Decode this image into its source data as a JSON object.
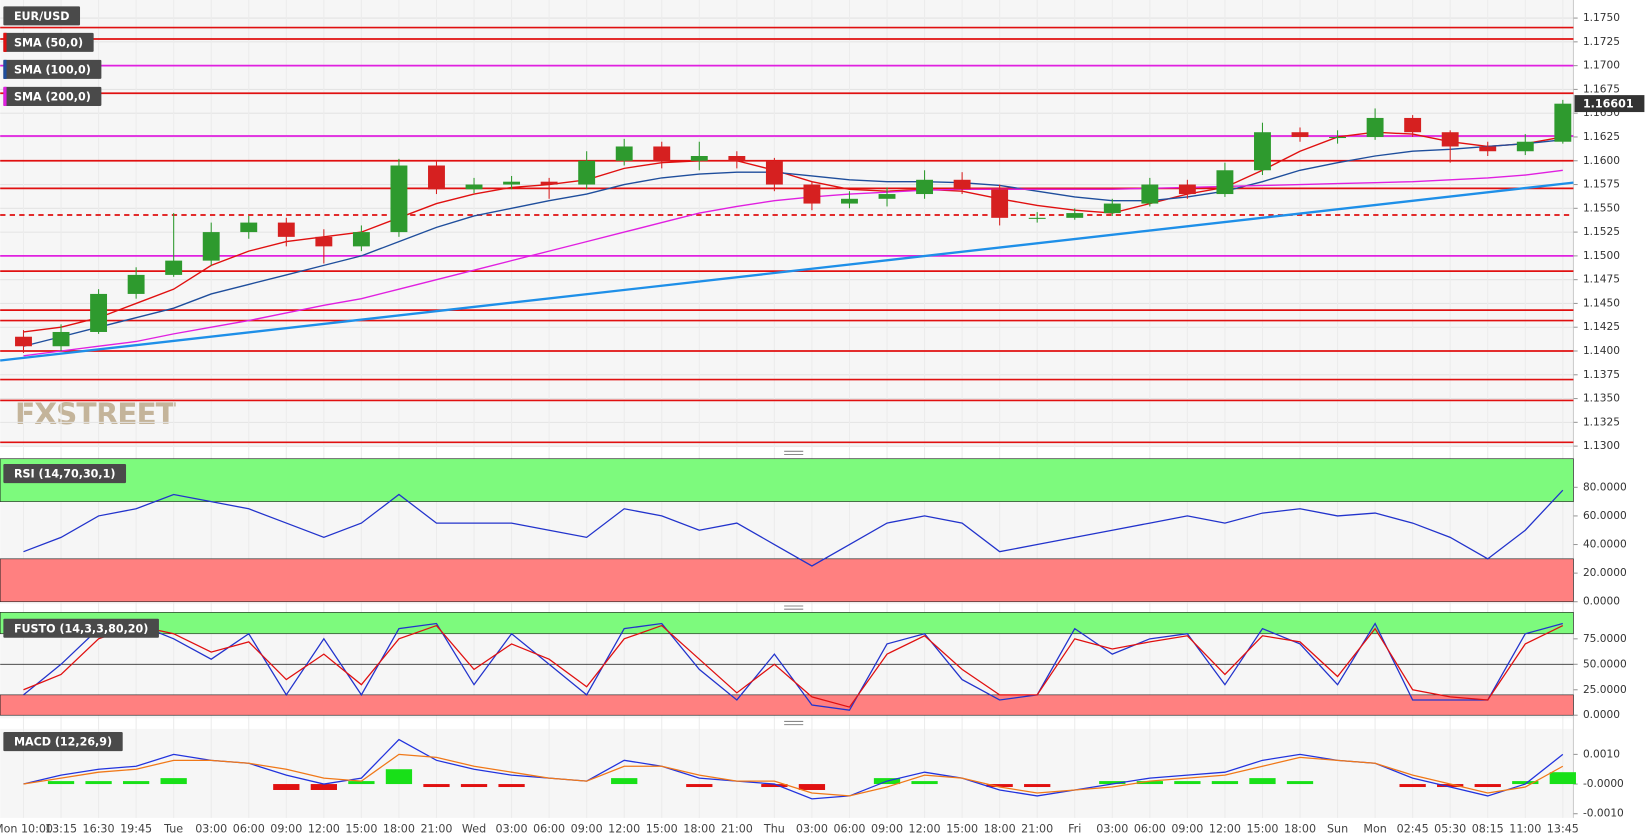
{
  "chart_data": [
    {
      "type": "candlestick",
      "symbol": "EUR/USD",
      "watermark": "FXSTREET",
      "categories": [
        "Mon 10:00",
        "13:15",
        "16:30",
        "19:45",
        "Tue",
        "03:00",
        "06:00",
        "09:00",
        "12:00",
        "15:00",
        "18:00",
        "21:00",
        "Wed",
        "03:00",
        "06:00",
        "09:00",
        "12:00",
        "15:00",
        "18:00",
        "21:00",
        "Thu",
        "03:00",
        "06:00",
        "09:00",
        "12:00",
        "15:00",
        "18:00",
        "21:00",
        "Fri",
        "03:00",
        "06:00",
        "09:00",
        "12:00",
        "15:00",
        "18:00",
        "Sun",
        "Mon",
        "02:45",
        "05:30",
        "08:15",
        "11:00",
        "13:45"
      ],
      "open": [
        1.1415,
        1.1405,
        1.142,
        1.146,
        1.148,
        1.1495,
        1.1525,
        1.1535,
        1.152,
        1.151,
        1.1525,
        1.1595,
        1.157,
        1.1575,
        1.1578,
        1.1575,
        1.16,
        1.1615,
        1.16,
        1.1605,
        1.16,
        1.1575,
        1.1555,
        1.156,
        1.1565,
        1.158,
        1.157,
        1.154,
        1.154,
        1.1545,
        1.1555,
        1.1575,
        1.1565,
        1.159,
        1.163,
        1.1625,
        1.1625,
        1.1645,
        1.163,
        1.1615,
        1.161,
        1.162
      ],
      "high": [
        1.1422,
        1.1428,
        1.1465,
        1.1488,
        1.1545,
        1.1535,
        1.1542,
        1.154,
        1.1528,
        1.1532,
        1.1602,
        1.16,
        1.1582,
        1.1584,
        1.1582,
        1.161,
        1.1623,
        1.162,
        1.162,
        1.161,
        1.1603,
        1.1578,
        1.1568,
        1.1572,
        1.159,
        1.1588,
        1.1575,
        1.1546,
        1.155,
        1.156,
        1.1582,
        1.158,
        1.1598,
        1.164,
        1.1635,
        1.1632,
        1.1655,
        1.1648,
        1.1632,
        1.162,
        1.1628,
        1.1664
      ],
      "low": [
        1.1398,
        1.14,
        1.1418,
        1.1455,
        1.1478,
        1.149,
        1.1518,
        1.151,
        1.1492,
        1.1505,
        1.152,
        1.1565,
        1.1566,
        1.157,
        1.156,
        1.157,
        1.1595,
        1.1592,
        1.159,
        1.1592,
        1.1568,
        1.1548,
        1.155,
        1.1552,
        1.156,
        1.1565,
        1.1532,
        1.1535,
        1.1538,
        1.1542,
        1.1552,
        1.156,
        1.1562,
        1.1585,
        1.162,
        1.1618,
        1.1622,
        1.1625,
        1.1598,
        1.1605,
        1.1606,
        1.1618
      ],
      "close": [
        1.1405,
        1.142,
        1.146,
        1.148,
        1.1495,
        1.1525,
        1.1535,
        1.152,
        1.151,
        1.1525,
        1.1595,
        1.157,
        1.1575,
        1.1578,
        1.1575,
        1.16,
        1.1615,
        1.16,
        1.1605,
        1.16,
        1.1575,
        1.1555,
        1.156,
        1.1565,
        1.158,
        1.157,
        1.154,
        1.154,
        1.1545,
        1.1555,
        1.1575,
        1.1565,
        1.159,
        1.163,
        1.1625,
        1.1625,
        1.1645,
        1.163,
        1.1615,
        1.161,
        1.162,
        1.166
      ],
      "up_color": "#2e9a2e",
      "down_color": "#d62020",
      "series": [
        {
          "name": "SMA (50,0)",
          "color": "#e01010",
          "values": [
            1.142,
            1.1425,
            1.1435,
            1.145,
            1.1465,
            1.149,
            1.1505,
            1.1515,
            1.152,
            1.1525,
            1.154,
            1.1555,
            1.1565,
            1.1572,
            1.1575,
            1.158,
            1.1592,
            1.1598,
            1.16,
            1.16,
            1.159,
            1.1578,
            1.157,
            1.1568,
            1.157,
            1.1568,
            1.156,
            1.1553,
            1.1548,
            1.1545,
            1.1555,
            1.1565,
            1.1572,
            1.159,
            1.161,
            1.1625,
            1.163,
            1.1628,
            1.162,
            1.1615,
            1.1618,
            1.1625
          ]
        },
        {
          "name": "SMA (100,0)",
          "color": "#1f4e9c",
          "values": [
            1.1405,
            1.1415,
            1.1425,
            1.1435,
            1.1445,
            1.146,
            1.147,
            1.148,
            1.149,
            1.15,
            1.1515,
            1.153,
            1.1542,
            1.155,
            1.1558,
            1.1565,
            1.1575,
            1.1582,
            1.1586,
            1.1588,
            1.1588,
            1.1584,
            1.158,
            1.1578,
            1.1578,
            1.1577,
            1.1574,
            1.1568,
            1.1562,
            1.1558,
            1.1558,
            1.1562,
            1.1568,
            1.1578,
            1.159,
            1.1598,
            1.1605,
            1.161,
            1.1612,
            1.1615,
            1.1618,
            1.1622
          ]
        },
        {
          "name": "SMA (200,0)",
          "color": "#e020e0",
          "values": [
            1.1395,
            1.14,
            1.1405,
            1.141,
            1.1418,
            1.1425,
            1.1432,
            1.144,
            1.1448,
            1.1455,
            1.1465,
            1.1475,
            1.1485,
            1.1495,
            1.1505,
            1.1515,
            1.1525,
            1.1535,
            1.1545,
            1.1552,
            1.1558,
            1.1562,
            1.1565,
            1.1567,
            1.1569,
            1.157,
            1.157,
            1.157,
            1.157,
            1.157,
            1.1571,
            1.1572,
            1.1573,
            1.1574,
            1.1575,
            1.1576,
            1.1577,
            1.1578,
            1.158,
            1.1582,
            1.1585,
            1.159
          ]
        }
      ],
      "levels": [
        {
          "value": 1.174,
          "color": "#e01010",
          "style": "solid"
        },
        {
          "value": 1.1728,
          "color": "#e01010",
          "style": "solid"
        },
        {
          "value": 1.17,
          "color": "#e020e0",
          "style": "solid"
        },
        {
          "value": 1.1671,
          "color": "#e01010",
          "style": "solid"
        },
        {
          "value": 1.1626,
          "color": "#e020e0",
          "style": "solid"
        },
        {
          "value": 1.16,
          "color": "#e01010",
          "style": "solid"
        },
        {
          "value": 1.1571,
          "color": "#e01010",
          "style": "solid"
        },
        {
          "value": 1.1543,
          "color": "#e01010",
          "style": "dashed"
        },
        {
          "value": 1.15,
          "color": "#e020e0",
          "style": "solid"
        },
        {
          "value": 1.1484,
          "color": "#e01010",
          "style": "solid"
        },
        {
          "value": 1.1443,
          "color": "#e01010",
          "style": "solid"
        },
        {
          "value": 1.1432,
          "color": "#e01010",
          "style": "solid"
        },
        {
          "value": 1.14,
          "color": "#e01010",
          "style": "solid"
        },
        {
          "value": 1.137,
          "color": "#e01010",
          "style": "solid"
        },
        {
          "value": 1.1348,
          "color": "#e01010",
          "style": "solid"
        },
        {
          "value": 1.1304,
          "color": "#e01010",
          "style": "solid"
        }
      ],
      "trendline": {
        "values": [
          1.139,
          1.1577
        ],
        "color": "#1e8fe8"
      },
      "last_price": 1.16601,
      "ylim": [
        1.1299,
        1.1769
      ],
      "grid": true,
      "yticks": [
        {
          "value": 1.13,
          "label": "1.1300"
        },
        {
          "value": 1.1325,
          "label": "1.1325"
        },
        {
          "value": 1.135,
          "label": "1.1350"
        },
        {
          "value": 1.1375,
          "label": "1.1375"
        },
        {
          "value": 1.14,
          "label": "1.1400"
        },
        {
          "value": 1.1425,
          "label": "1.1425"
        },
        {
          "value": 1.145,
          "label": "1.1450"
        },
        {
          "value": 1.1475,
          "label": "1.1475"
        },
        {
          "value": 1.15,
          "label": "1.1500"
        },
        {
          "value": 1.1525,
          "label": "1.1525"
        },
        {
          "value": 1.155,
          "label": "1.1550"
        },
        {
          "value": 1.1575,
          "label": "1.1575"
        },
        {
          "value": 1.16,
          "label": "1.1600"
        },
        {
          "value": 1.1625,
          "label": "1.1625"
        },
        {
          "value": 1.165,
          "label": "1.1650"
        },
        {
          "value": 1.1675,
          "label": "1.1675"
        },
        {
          "value": 1.17,
          "label": "1.1700"
        },
        {
          "value": 1.1725,
          "label": "1.1725"
        },
        {
          "value": 1.175,
          "label": "1.1750"
        }
      ]
    },
    {
      "type": "rsi",
      "name": "RSI (14,70,30,1)",
      "series": [
        {
          "color": "#2233cc",
          "values": [
            35,
            45,
            60,
            65,
            75,
            70,
            65,
            55,
            45,
            55,
            75,
            55,
            55,
            55,
            50,
            45,
            65,
            60,
            50,
            55,
            40,
            25,
            40,
            55,
            60,
            55,
            35,
            40,
            45,
            50,
            55,
            60,
            55,
            62,
            65,
            60,
            62,
            55,
            45,
            30,
            50,
            78
          ]
        }
      ],
      "upper": 70,
      "lower": 30,
      "upper_color": "#7dfa7d",
      "lower_color": "#ff8080",
      "ylim": [
        -1.5,
        100
      ],
      "yticks": [
        {
          "value": 0,
          "label": "0.0000"
        },
        {
          "value": 20,
          "label": "20.0000"
        },
        {
          "value": 40,
          "label": "40.0000"
        },
        {
          "value": 60,
          "label": "60.0000"
        },
        {
          "value": 80,
          "label": "80.0000"
        }
      ]
    },
    {
      "type": "stochastic",
      "name": "FUSTO (14,3,3,80,20)",
      "series": [
        {
          "color": "#2233cc",
          "values": [
            20,
            50,
            85,
            90,
            75,
            55,
            80,
            20,
            75,
            20,
            85,
            90,
            30,
            80,
            50,
            20,
            85,
            90,
            45,
            15,
            60,
            10,
            5,
            70,
            80,
            35,
            15,
            20,
            85,
            60,
            75,
            80,
            30,
            85,
            70,
            30,
            90,
            15,
            15,
            15,
            80,
            90
          ]
        },
        {
          "color": "#e01010",
          "values": [
            25,
            40,
            75,
            88,
            80,
            62,
            72,
            35,
            60,
            30,
            75,
            88,
            45,
            70,
            55,
            28,
            75,
            88,
            55,
            22,
            50,
            18,
            8,
            60,
            78,
            45,
            20,
            20,
            75,
            65,
            72,
            78,
            40,
            78,
            72,
            38,
            85,
            25,
            18,
            15,
            70,
            88
          ]
        }
      ],
      "upper": 80,
      "lower": 20,
      "midline": 50,
      "upper_color": "#7dfa7d",
      "lower_color": "#ff8080",
      "ylim": [
        -3,
        101
      ],
      "yticks": [
        {
          "value": 0,
          "label": "0.0000"
        },
        {
          "value": 25,
          "label": "25.0000"
        },
        {
          "value": 50,
          "label": "50.0000"
        },
        {
          "value": 75,
          "label": "75.0000"
        }
      ]
    },
    {
      "type": "macd",
      "name": "MACD (12,26,9)",
      "series": [
        {
          "color": "#2233dd",
          "values": [
            0.0,
            0.0003,
            0.0005,
            0.0006,
            0.001,
            0.0008,
            0.0007,
            0.0003,
            0.0,
            0.0002,
            0.0015,
            0.0008,
            0.0005,
            0.0003,
            0.0002,
            0.0001,
            0.0008,
            0.0006,
            0.0002,
            0.0001,
            0.0,
            -0.0005,
            -0.0004,
            0.0001,
            0.0004,
            0.0002,
            -0.0002,
            -0.0004,
            -0.0002,
            0.0,
            0.0002,
            0.0003,
            0.0004,
            0.0008,
            0.001,
            0.0008,
            0.0007,
            0.0002,
            -0.0001,
            -0.0004,
            0.0,
            0.001
          ]
        },
        {
          "color": "#f07818",
          "values": [
            0.0,
            0.0002,
            0.0004,
            0.0005,
            0.0008,
            0.0008,
            0.0007,
            0.0005,
            0.0002,
            0.0001,
            0.001,
            0.0009,
            0.0006,
            0.0004,
            0.0002,
            0.0001,
            0.0006,
            0.0006,
            0.0003,
            0.0001,
            0.0001,
            -0.0003,
            -0.0004,
            -0.0001,
            0.0003,
            0.0002,
            -0.0001,
            -0.0003,
            -0.0002,
            -0.0001,
            0.0001,
            0.0002,
            0.0003,
            0.0006,
            0.0009,
            0.0008,
            0.0007,
            0.0003,
            0.0,
            -0.0003,
            -0.0001,
            0.0006
          ]
        }
      ],
      "histogram": {
        "positive_color": "#18e018",
        "negative_color": "#e01010",
        "values": [
          0,
          0.0001,
          0.0001,
          0.0001,
          0.0002,
          0,
          0,
          -0.0002,
          -0.0002,
          0.0001,
          0.0005,
          -0.0001,
          -0.0001,
          -0.0001,
          0,
          0,
          0.0002,
          0,
          -0.0001,
          0,
          -0.0001,
          -0.0002,
          0,
          0.0002,
          0.0001,
          0,
          -0.0001,
          -0.0001,
          0,
          0.0001,
          0.0001,
          0.0001,
          0.0001,
          0.0002,
          0.0001,
          0,
          0,
          -0.0001,
          -0.0001,
          -0.0001,
          0.0001,
          0.0004
        ]
      },
      "ylim": [
        -0.00114,
        0.00186
      ],
      "yticks": [
        {
          "value": -0.001,
          "label": "-0.0010"
        },
        {
          "value": 0,
          "label": "-0.0000"
        },
        {
          "value": 0.001,
          "label": "0.0010"
        }
      ]
    }
  ]
}
